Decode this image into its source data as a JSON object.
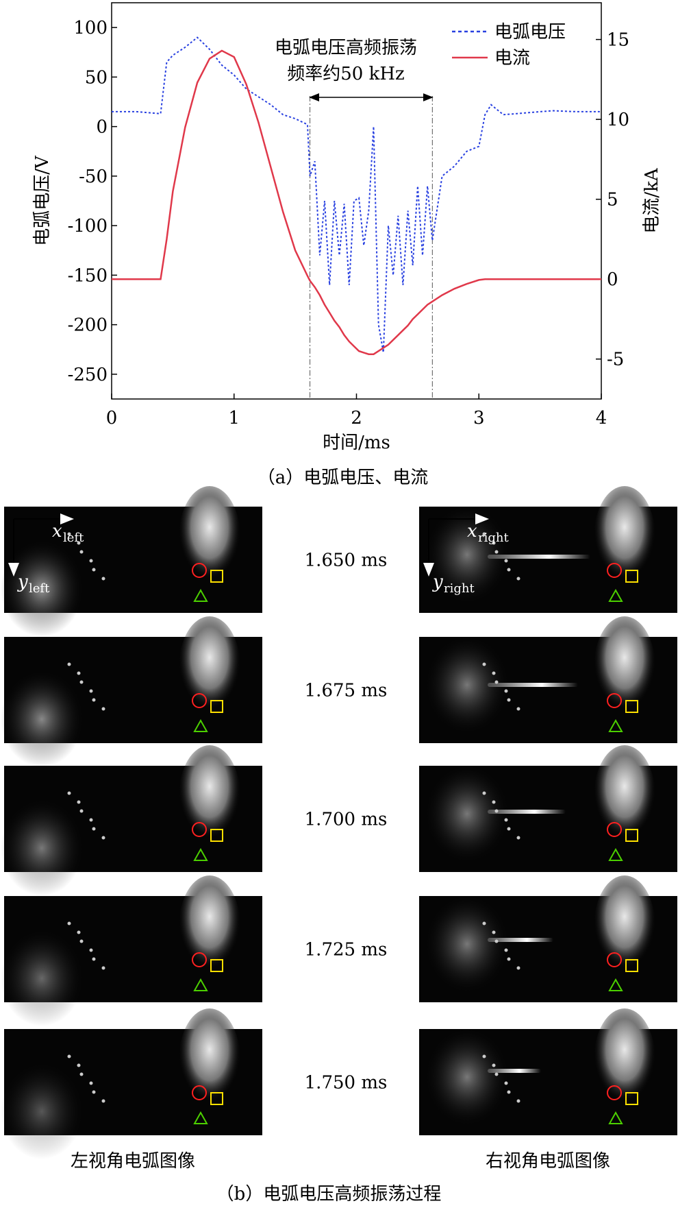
{
  "chart_data": {
    "type": "line",
    "xlabel": "时间/ms",
    "ylabel": "电弧电压/V",
    "y2label": "电流/kA",
    "xlim": [
      0,
      4
    ],
    "xticks": [
      0,
      1,
      2,
      3,
      4
    ],
    "ylim": [
      -275,
      125
    ],
    "yticks": [
      100,
      50,
      0,
      -50,
      -100,
      -150,
      -200,
      -250
    ],
    "y2lim": [
      -7.5,
      17.3
    ],
    "y2ticks": [
      15,
      10,
      5,
      0,
      -5
    ],
    "x": [
      0,
      0.1,
      0.2,
      0.3,
      0.4,
      0.45,
      0.5,
      0.6,
      0.7,
      0.8,
      0.9,
      1.0,
      1.1,
      1.2,
      1.3,
      1.4,
      1.5,
      1.6,
      1.62,
      1.66,
      1.7,
      1.74,
      1.78,
      1.82,
      1.86,
      1.9,
      1.94,
      1.98,
      2.02,
      2.06,
      2.1,
      2.14,
      2.18,
      2.22,
      2.26,
      2.3,
      2.34,
      2.38,
      2.42,
      2.46,
      2.5,
      2.54,
      2.58,
      2.62,
      2.7,
      2.8,
      2.9,
      3.0,
      3.05,
      3.1,
      3.2,
      3.4,
      3.6,
      3.8,
      4.0
    ],
    "series": [
      {
        "name": "电弧电压",
        "color": "#2840e0",
        "dash": true,
        "values": [
          15,
          15,
          15,
          14,
          13,
          65,
          72,
          80,
          90,
          78,
          62,
          52,
          38,
          30,
          22,
          12,
          8,
          2,
          -50,
          -35,
          -130,
          -75,
          -160,
          -75,
          -130,
          -78,
          -160,
          -75,
          -72,
          -120,
          -85,
          0,
          -200,
          -228,
          -100,
          -150,
          -90,
          -160,
          -85,
          -140,
          -60,
          -130,
          -60,
          -115,
          -50,
          -40,
          -25,
          -20,
          12,
          22,
          12,
          14,
          16,
          15,
          15
        ]
      },
      {
        "name": "电流",
        "color": "#e0384a",
        "dash": false,
        "axis": "y2",
        "values": [
          0,
          0,
          0,
          0,
          0,
          2.5,
          5.5,
          9.5,
          12.3,
          13.8,
          14.3,
          13.9,
          12.2,
          9.8,
          7.0,
          4.2,
          1.8,
          0.2,
          -0.1,
          -0.5,
          -1.0,
          -1.6,
          -2.1,
          -2.6,
          -3.0,
          -3.5,
          -3.9,
          -4.2,
          -4.5,
          -4.6,
          -4.7,
          -4.7,
          -4.5,
          -4.3,
          -4.1,
          -3.8,
          -3.5,
          -3.2,
          -2.9,
          -2.5,
          -2.2,
          -1.9,
          -1.6,
          -1.4,
          -1.0,
          -0.6,
          -0.3,
          -0.05,
          0,
          0,
          0,
          0,
          0,
          0,
          0
        ]
      }
    ],
    "vlines": [
      1.62,
      2.62
    ],
    "annotation": [
      "电弧电压高频振荡",
      "频率约50 kHz"
    ],
    "caption": "（a）电弧电压、电流"
  },
  "panels": {
    "times": [
      "1.650 ms",
      "1.675 ms",
      "1.700 ms",
      "1.725 ms",
      "1.750 ms"
    ],
    "left_axes": [
      {
        "var": "x",
        "sub": "left"
      },
      {
        "var": "y",
        "sub": "left"
      }
    ],
    "right_axes": [
      {
        "var": "x",
        "sub": "right"
      },
      {
        "var": "y",
        "sub": "right"
      }
    ],
    "left_label": "左视角电弧图像",
    "right_label": "右视角电弧图像",
    "caption": "（b）电弧电压高频振荡过程"
  }
}
